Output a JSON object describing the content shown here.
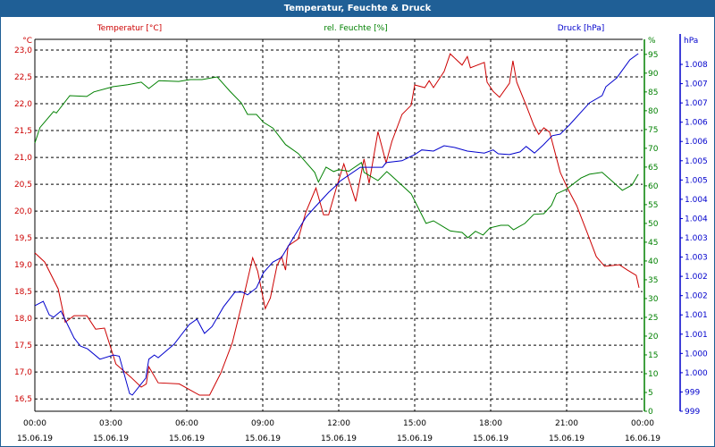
{
  "window": {
    "title": "Temperatur, Feuchte & Druck"
  },
  "colors": {
    "temperature": "#cc0000",
    "humidity": "#008000",
    "pressure": "#0000cc",
    "titlebar": "#1f5f96"
  },
  "legend": {
    "temperature": "Temperatur [°C]",
    "humidity": "rel. Feuchte [%]",
    "pressure": "Druck [hPa]"
  },
  "chart_data": {
    "type": "line",
    "title": "Temperatur, Feuchte & Druck",
    "xlabel": "",
    "x_unit": "hours since 15.06.19 00:00",
    "xlim": [
      0,
      24
    ],
    "grid": true,
    "x_ticks": [
      {
        "hour": 0,
        "time": "00:00",
        "date": "15.06.19"
      },
      {
        "hour": 3,
        "time": "03:00",
        "date": "15.06.19"
      },
      {
        "hour": 6,
        "time": "06:00",
        "date": "15.06.19"
      },
      {
        "hour": 9,
        "time": "09:00",
        "date": "15.06.19"
      },
      {
        "hour": 12,
        "time": "12:00",
        "date": "15.06.19"
      },
      {
        "hour": 15,
        "time": "15:00",
        "date": "15.06.19"
      },
      {
        "hour": 18,
        "time": "18:00",
        "date": "15.06.19"
      },
      {
        "hour": 21,
        "time": "21:00",
        "date": "15.06.19"
      },
      {
        "hour": 24,
        "time": "00:00",
        "date": "16.06.19"
      }
    ],
    "axes": {
      "temperature": {
        "unit": "°C",
        "ylim": [
          16.27,
          23.2
        ],
        "ticks": [
          [
            16.5,
            "16,5"
          ],
          [
            17.0,
            "17,0"
          ],
          [
            17.5,
            "17,5"
          ],
          [
            18.0,
            "18,0"
          ],
          [
            18.5,
            "18,5"
          ],
          [
            19.0,
            "19,0"
          ],
          [
            19.5,
            "19,5"
          ],
          [
            20.0,
            "20,0"
          ],
          [
            20.5,
            "20,5"
          ],
          [
            21.0,
            "21,0"
          ],
          [
            21.5,
            "21,5"
          ],
          [
            22.0,
            "22,0"
          ],
          [
            22.5,
            "22,5"
          ],
          [
            23.0,
            "23,0"
          ]
        ]
      },
      "humidity": {
        "unit": "%",
        "ylim": [
          0,
          99
        ],
        "ticks": [
          [
            0,
            "0"
          ],
          [
            5,
            "5"
          ],
          [
            10,
            "10"
          ],
          [
            15,
            "15"
          ],
          [
            20,
            "20"
          ],
          [
            25,
            "25"
          ],
          [
            30,
            "30"
          ],
          [
            35,
            "35"
          ],
          [
            40,
            "40"
          ],
          [
            45,
            "45"
          ],
          [
            50,
            "50"
          ],
          [
            55,
            "55"
          ],
          [
            60,
            "60"
          ],
          [
            65,
            "65"
          ],
          [
            70,
            "70"
          ],
          [
            75,
            "75"
          ],
          [
            80,
            "80"
          ],
          [
            85,
            "85"
          ],
          [
            90,
            "90"
          ],
          [
            95,
            "95"
          ]
        ]
      },
      "pressure": {
        "unit": "hPa",
        "ylim": [
          999.0,
          1008.65
        ],
        "ticks": [
          [
            999.0,
            "999"
          ],
          [
            999.5,
            "999"
          ],
          [
            1000.0,
            "1.000"
          ],
          [
            1000.5,
            "1.000"
          ],
          [
            1001.0,
            "1.001"
          ],
          [
            1001.5,
            "1.001"
          ],
          [
            1002.0,
            "1.002"
          ],
          [
            1002.5,
            "1.002"
          ],
          [
            1003.0,
            "1.003"
          ],
          [
            1003.5,
            "1.003"
          ],
          [
            1004.0,
            "1.004"
          ],
          [
            1004.5,
            "1.004"
          ],
          [
            1005.0,
            "1.005"
          ],
          [
            1005.5,
            "1.005"
          ],
          [
            1006.0,
            "1.006"
          ],
          [
            1006.5,
            "1.006"
          ],
          [
            1007.0,
            "1.007"
          ],
          [
            1007.5,
            "1.007"
          ],
          [
            1008.0,
            "1.008"
          ]
        ]
      }
    },
    "series": [
      {
        "name": "Temperatur [°C]",
        "axis": "temperature",
        "points": [
          [
            0,
            19.22
          ],
          [
            0.39,
            19.05
          ],
          [
            0.92,
            18.55
          ],
          [
            1.2,
            17.93
          ],
          [
            1.55,
            18.05
          ],
          [
            2.05,
            18.05
          ],
          [
            2.4,
            17.8
          ],
          [
            2.75,
            17.82
          ],
          [
            3.2,
            17.15
          ],
          [
            3.8,
            16.9
          ],
          [
            4.2,
            16.72
          ],
          [
            4.4,
            16.78
          ],
          [
            4.5,
            17.1
          ],
          [
            4.87,
            16.8
          ],
          [
            5.7,
            16.78
          ],
          [
            6.5,
            16.57
          ],
          [
            6.9,
            16.57
          ],
          [
            7.34,
            16.98
          ],
          [
            7.8,
            17.55
          ],
          [
            8.26,
            18.43
          ],
          [
            8.6,
            19.13
          ],
          [
            8.8,
            18.88
          ],
          [
            9.1,
            18.18
          ],
          [
            9.3,
            18.38
          ],
          [
            9.56,
            18.98
          ],
          [
            9.74,
            19.15
          ],
          [
            9.9,
            18.9
          ],
          [
            10.0,
            19.35
          ],
          [
            10.4,
            19.48
          ],
          [
            10.7,
            19.98
          ],
          [
            11.1,
            20.43
          ],
          [
            11.4,
            19.93
          ],
          [
            11.6,
            19.93
          ],
          [
            11.93,
            20.47
          ],
          [
            12.2,
            20.88
          ],
          [
            12.67,
            20.18
          ],
          [
            13.0,
            20.97
          ],
          [
            13.2,
            20.52
          ],
          [
            13.55,
            21.48
          ],
          [
            13.87,
            20.9
          ],
          [
            14.1,
            21.3
          ],
          [
            14.5,
            21.8
          ],
          [
            14.86,
            21.97
          ],
          [
            15.0,
            22.35
          ],
          [
            15.4,
            22.3
          ],
          [
            15.57,
            22.43
          ],
          [
            15.74,
            22.3
          ],
          [
            16.16,
            22.6
          ],
          [
            16.4,
            22.93
          ],
          [
            16.87,
            22.72
          ],
          [
            17.08,
            22.88
          ],
          [
            17.2,
            22.67
          ],
          [
            17.75,
            22.77
          ],
          [
            17.86,
            22.4
          ],
          [
            18.1,
            22.23
          ],
          [
            18.35,
            22.12
          ],
          [
            18.74,
            22.38
          ],
          [
            18.88,
            22.8
          ],
          [
            19.03,
            22.4
          ],
          [
            19.4,
            21.97
          ],
          [
            19.7,
            21.6
          ],
          [
            19.9,
            21.43
          ],
          [
            20.1,
            21.55
          ],
          [
            20.33,
            21.47
          ],
          [
            20.75,
            20.72
          ],
          [
            21.03,
            20.43
          ],
          [
            21.4,
            20.1
          ],
          [
            21.85,
            19.55
          ],
          [
            22.17,
            19.15
          ],
          [
            22.5,
            18.97
          ],
          [
            23.08,
            19.0
          ],
          [
            23.4,
            18.9
          ],
          [
            23.75,
            18.8
          ],
          [
            23.86,
            18.57
          ]
        ]
      },
      {
        "name": "rel. Feuchte [%]",
        "axis": "humidity",
        "points": [
          [
            0,
            71.4
          ],
          [
            0.2,
            75.5
          ],
          [
            0.74,
            79.8
          ],
          [
            0.85,
            79.4
          ],
          [
            1.38,
            84
          ],
          [
            2.05,
            83.8
          ],
          [
            2.33,
            85
          ],
          [
            3.1,
            86.4
          ],
          [
            3.67,
            86.9
          ],
          [
            4.2,
            87.6
          ],
          [
            4.5,
            85.9
          ],
          [
            4.9,
            88
          ],
          [
            5.68,
            87.8
          ],
          [
            6.14,
            88.3
          ],
          [
            6.6,
            88.3
          ],
          [
            7.2,
            89
          ],
          [
            7.7,
            85.2
          ],
          [
            8.15,
            82.1
          ],
          [
            8.4,
            79
          ],
          [
            8.75,
            79
          ],
          [
            9.03,
            76.9
          ],
          [
            9.4,
            75.4
          ],
          [
            9.9,
            71
          ],
          [
            10.4,
            68.6
          ],
          [
            11.05,
            63.6
          ],
          [
            11.2,
            61
          ],
          [
            11.5,
            65
          ],
          [
            11.8,
            63.8
          ],
          [
            12.0,
            64.3
          ],
          [
            12.4,
            63.9
          ],
          [
            12.9,
            66.2
          ],
          [
            13.0,
            63.6
          ],
          [
            13.55,
            61.4
          ],
          [
            13.9,
            63.8
          ],
          [
            14.1,
            62.6
          ],
          [
            14.6,
            59.5
          ],
          [
            14.86,
            57.9
          ],
          [
            15.45,
            50
          ],
          [
            15.74,
            50.7
          ],
          [
            16.4,
            48
          ],
          [
            16.87,
            47.6
          ],
          [
            17.1,
            46.2
          ],
          [
            17.4,
            47.9
          ],
          [
            17.7,
            46.9
          ],
          [
            17.97,
            48.8
          ],
          [
            18.4,
            49.5
          ],
          [
            18.7,
            49.5
          ],
          [
            18.9,
            48.3
          ],
          [
            19.35,
            50
          ],
          [
            19.7,
            52.4
          ],
          [
            20.1,
            52.6
          ],
          [
            20.4,
            54.8
          ],
          [
            20.6,
            57.9
          ],
          [
            20.97,
            59
          ],
          [
            21.57,
            62.1
          ],
          [
            21.9,
            63.1
          ],
          [
            22.4,
            63.6
          ],
          [
            22.8,
            61.2
          ],
          [
            23.2,
            58.8
          ],
          [
            23.58,
            60.2
          ],
          [
            23.83,
            63.1
          ]
        ]
      },
      {
        "name": "Druck [hPa]",
        "axis": "pressure",
        "points": [
          [
            0,
            1001.74
          ],
          [
            0.33,
            1001.85
          ],
          [
            0.57,
            1001.5
          ],
          [
            0.74,
            1001.44
          ],
          [
            1.03,
            1001.6
          ],
          [
            1.55,
            1000.9
          ],
          [
            1.8,
            1000.69
          ],
          [
            2.08,
            1000.62
          ],
          [
            2.57,
            1000.35
          ],
          [
            3.1,
            1000.46
          ],
          [
            3.33,
            1000.43
          ],
          [
            3.74,
            999.46
          ],
          [
            3.85,
            999.42
          ],
          [
            4.38,
            999.86
          ],
          [
            4.5,
            1000.35
          ],
          [
            4.72,
            1000.46
          ],
          [
            4.87,
            1000.39
          ],
          [
            5.5,
            1000.74
          ],
          [
            6.1,
            1001.25
          ],
          [
            6.4,
            1001.39
          ],
          [
            6.7,
            1001.02
          ],
          [
            7.0,
            1001.2
          ],
          [
            7.45,
            1001.71
          ],
          [
            7.9,
            1002.09
          ],
          [
            8.2,
            1002.09
          ],
          [
            8.4,
            1002.02
          ],
          [
            8.75,
            1002.2
          ],
          [
            9.03,
            1002.6
          ],
          [
            9.4,
            1002.87
          ],
          [
            9.74,
            1002.99
          ],
          [
            10.27,
            1003.57
          ],
          [
            10.7,
            1004.03
          ],
          [
            11.05,
            1004.29
          ],
          [
            11.6,
            1004.68
          ],
          [
            12.0,
            1004.92
          ],
          [
            12.03,
            1004.96
          ],
          [
            12.85,
            1005.33
          ],
          [
            13.73,
            1005.33
          ],
          [
            13.87,
            1005.45
          ],
          [
            14.5,
            1005.5
          ],
          [
            15.0,
            1005.66
          ],
          [
            15.28,
            1005.78
          ],
          [
            15.74,
            1005.75
          ],
          [
            16.16,
            1005.89
          ],
          [
            16.6,
            1005.84
          ],
          [
            17.08,
            1005.75
          ],
          [
            17.75,
            1005.7
          ],
          [
            18.1,
            1005.78
          ],
          [
            18.3,
            1005.68
          ],
          [
            18.74,
            1005.66
          ],
          [
            19.16,
            1005.73
          ],
          [
            19.4,
            1005.87
          ],
          [
            19.73,
            1005.7
          ],
          [
            20.08,
            1005.91
          ],
          [
            20.43,
            1006.15
          ],
          [
            20.75,
            1006.19
          ],
          [
            21.1,
            1006.42
          ],
          [
            21.9,
            1007.0
          ],
          [
            22.4,
            1007.19
          ],
          [
            22.55,
            1007.42
          ],
          [
            22.98,
            1007.65
          ],
          [
            23.5,
            1008.12
          ],
          [
            23.83,
            1008.28
          ]
        ]
      }
    ]
  }
}
